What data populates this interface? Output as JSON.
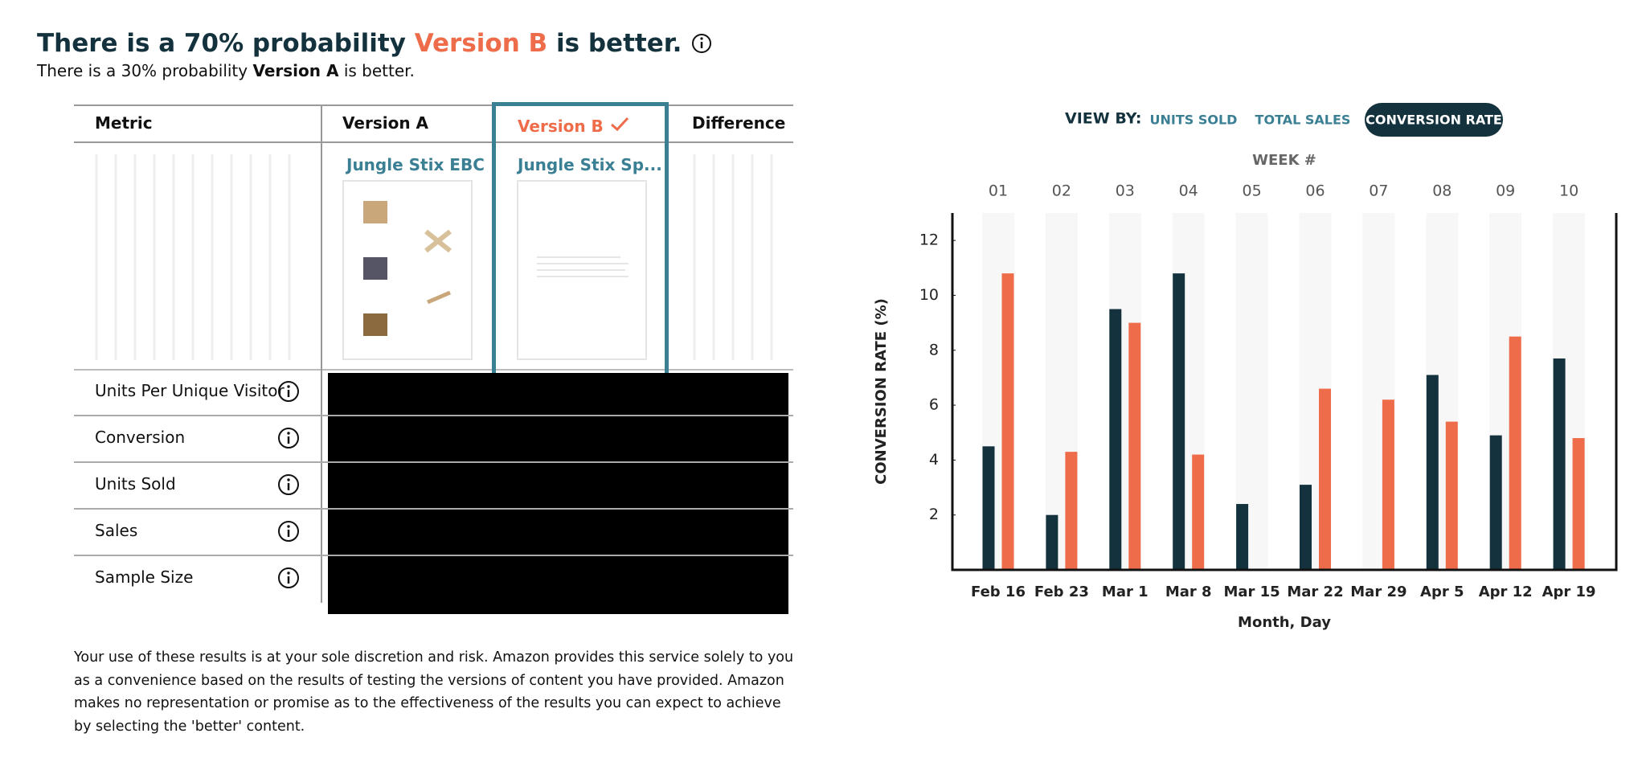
{
  "header": {
    "title": {
      "prefix": "There is a 70% probability",
      "highlight": "Version B",
      "suffix": "is better."
    },
    "subtitle": {
      "prefix": "There is a 30% probability",
      "highlight": "Version A",
      "suffix": "is better."
    }
  },
  "table": {
    "columns": [
      "Metric",
      "Version A",
      "Version B",
      "Difference"
    ],
    "versions": [
      "Jungle Stix EBC",
      "Jungle Stix Sp..."
    ],
    "rows": [
      "Units Per Unique Visitor",
      "Conversion",
      "Units Sold",
      "Sales",
      "Sample Size"
    ]
  },
  "view_by": {
    "label": "VIEW BY:",
    "options": [
      "UNITS SOLD",
      "TOTAL SALES",
      "CONVERSION RATE"
    ],
    "selected": 2
  },
  "chart_data": {
    "type": "bar",
    "week_title": "WEEK #",
    "weeks": [
      "01",
      "02",
      "03",
      "04",
      "05",
      "06",
      "07",
      "08",
      "09",
      "10"
    ],
    "categories": [
      "Feb 16",
      "Feb 23",
      "Mar 1",
      "Mar 8",
      "Mar 15",
      "Mar 22",
      "Mar 29",
      "Apr 5",
      "Apr 12",
      "Apr 19"
    ],
    "x_label": "Month, Day",
    "y_label": "CONVERSION RATE (%)",
    "ylim": [
      0,
      13
    ],
    "yticks": [
      2,
      4,
      6,
      8,
      10,
      12
    ],
    "series": [
      {
        "color": "#14323d",
        "values": [
          4.5,
          2.0,
          9.5,
          10.8,
          2.4,
          3.1,
          null,
          7.1,
          4.9,
          7.7
        ]
      },
      {
        "color": "#ef6c4a",
        "values": [
          10.8,
          4.3,
          9.0,
          4.2,
          null,
          6.6,
          6.2,
          5.4,
          8.5,
          4.8
        ]
      }
    ]
  },
  "disclaimer": "Your use of these results is at your sole discretion and risk. Amazon provides this service solely to you as a convenience based on the results of testing the versions of content you have provided. Amazon makes no representation or promise as to the effectiveness of the results you can expect to achieve by selecting the 'better' content."
}
